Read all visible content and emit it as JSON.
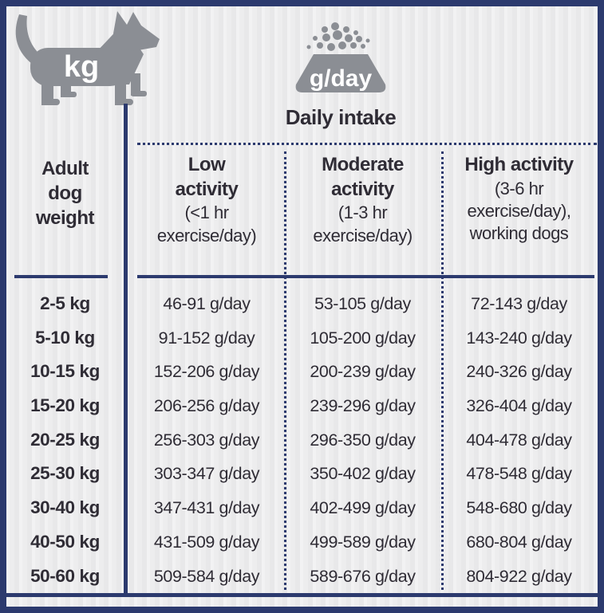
{
  "icons": {
    "dog_badge": "kg",
    "bowl_badge": "g/day"
  },
  "title": "Daily intake",
  "table": {
    "weight_header": "Adult\ndog\nweight",
    "columns": [
      {
        "key": "low",
        "bold": "Low\nactivity",
        "sub": "(<1 hr\nexercise/day)"
      },
      {
        "key": "moderate",
        "bold": "Moderate\nactivity",
        "sub": "(1-3 hr\nexercise/day)"
      },
      {
        "key": "high",
        "bold": "High activity",
        "sub": "(3-6 hr\nexercise/day),\nworking dogs"
      }
    ],
    "rows": [
      {
        "weight": "2-5 kg",
        "low": "46-91 g/day",
        "moderate": "53-105 g/day",
        "high": "72-143 g/day"
      },
      {
        "weight": "5-10 kg",
        "low": "91-152 g/day",
        "moderate": "105-200 g/day",
        "high": "143-240 g/day"
      },
      {
        "weight": "10-15 kg",
        "low": "152-206 g/day",
        "moderate": "200-239 g/day",
        "high": "240-326 g/day"
      },
      {
        "weight": "15-20 kg",
        "low": "206-256 g/day",
        "moderate": "239-296 g/day",
        "high": "326-404 g/day"
      },
      {
        "weight": "20-25 kg",
        "low": "256-303 g/day",
        "moderate": "296-350 g/day",
        "high": "404-478 g/day"
      },
      {
        "weight": "25-30 kg",
        "low": "303-347 g/day",
        "moderate": "350-402 g/day",
        "high": "478-548 g/day"
      },
      {
        "weight": "30-40 kg",
        "low": "347-431 g/day",
        "moderate": "402-499 g/day",
        "high": "548-680 g/day"
      },
      {
        "weight": "40-50 kg",
        "low": "431-509 g/day",
        "moderate": "499-589 g/day",
        "high": "680-804 g/day"
      },
      {
        "weight": "50-60 kg",
        "low": "509-584 g/day",
        "moderate": "589-676 g/day",
        "high": "804-922 g/day"
      }
    ]
  },
  "chart_data": {
    "type": "table",
    "title": "Daily intake",
    "unit": "g/day",
    "weight_unit": "kg",
    "columns": [
      "Adult dog weight",
      "Low activity (<1 hr exercise/day)",
      "Moderate activity (1-3 hr exercise/day)",
      "High activity (3-6 hr exercise/day), working dogs"
    ],
    "rows": [
      [
        "2-5 kg",
        "46-91 g/day",
        "53-105 g/day",
        "72-143 g/day"
      ],
      [
        "5-10 kg",
        "91-152 g/day",
        "105-200 g/day",
        "143-240 g/day"
      ],
      [
        "10-15 kg",
        "152-206 g/day",
        "200-239 g/day",
        "240-326 g/day"
      ],
      [
        "15-20 kg",
        "206-256 g/day",
        "239-296 g/day",
        "326-404 g/day"
      ],
      [
        "20-25 kg",
        "256-303 g/day",
        "296-350 g/day",
        "404-478 g/day"
      ],
      [
        "25-30 kg",
        "303-347 g/day",
        "350-402 g/day",
        "478-548 g/day"
      ],
      [
        "30-40 kg",
        "347-431 g/day",
        "402-499 g/day",
        "548-680 g/day"
      ],
      [
        "40-50 kg",
        "431-509 g/day",
        "499-589 g/day",
        "680-804 g/day"
      ],
      [
        "50-60 kg",
        "509-584 g/day",
        "589-676 g/day",
        "804-922 g/day"
      ]
    ]
  },
  "colors": {
    "navy": "#2c3a6e",
    "icon_gray": "#8b8e94",
    "text": "#2f2c35",
    "paper": "#ededee"
  }
}
